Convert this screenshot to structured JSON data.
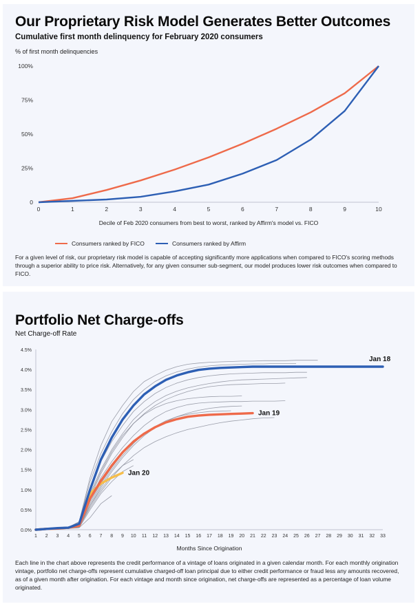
{
  "chart_data": [
    {
      "type": "line",
      "title": "Our Proprietary Risk Model Generates Better Outcomes",
      "subtitle": "Cumulative first month delinquency for February 2020 consumers",
      "ylabel": "% of first month delinquencies",
      "xlabel": "Decile of Feb 2020 consumers from best to worst, ranked by Affirm's model vs. FICO",
      "x": [
        0,
        1,
        2,
        3,
        4,
        5,
        6,
        7,
        8,
        9,
        10
      ],
      "xticks": [
        "0",
        "1",
        "2",
        "3",
        "4",
        "5",
        "6",
        "7",
        "8",
        "9",
        "10"
      ],
      "yticks": [
        "0",
        "25%",
        "50%",
        "75%",
        "100%"
      ],
      "ytick_values": [
        0,
        25,
        50,
        75,
        100
      ],
      "ylim": [
        0,
        100
      ],
      "xlim": [
        0,
        10
      ],
      "series": [
        {
          "name": "Consumers ranked by FICO",
          "color": "#ee6a4a",
          "values": [
            0,
            3,
            9,
            16,
            24,
            33,
            43,
            54,
            66,
            80,
            100
          ]
        },
        {
          "name": "Consumers ranked by Affirm",
          "color": "#2d5fb4",
          "values": [
            0,
            1,
            2,
            4,
            8,
            13,
            21,
            31,
            46,
            67,
            100
          ]
        }
      ],
      "legend_position": "bottom",
      "note": "For a given level of risk, our proprietary risk model is capable of accepting significantly more applications when compared to FICO's scoring methods through a superior ability to price risk. Alternatively, for any given consumer sub-segment, our model produces lower risk outcomes when compared to FICO."
    },
    {
      "type": "line",
      "title": "Portfolio Net Charge-offs",
      "subtitle": "Net Charge-off Rate",
      "xlabel": "Months Since Origination",
      "xlim": [
        1,
        33
      ],
      "ylim": [
        0,
        4.5
      ],
      "xticks": [
        "1",
        "2",
        "3",
        "4",
        "5",
        "6",
        "7",
        "8",
        "9",
        "10",
        "11",
        "12",
        "13",
        "14",
        "15",
        "16",
        "17",
        "18",
        "19",
        "20",
        "21",
        "22",
        "23",
        "24",
        "25",
        "26",
        "27",
        "28",
        "29",
        "30",
        "31",
        "32",
        "33"
      ],
      "yticks": [
        "0.0%",
        "0.5%",
        "1.0%",
        "1.5%",
        "2.0%",
        "2.5%",
        "3.0%",
        "3.5%",
        "4.0%",
        "4.5%"
      ],
      "ytick_values": [
        0,
        0.5,
        1,
        1.5,
        2,
        2.5,
        3,
        3.5,
        4,
        4.5
      ],
      "background_series_color": "#8a8d9a",
      "background_series": [
        [
          0,
          0.02,
          0.04,
          0.06,
          0.2,
          1.3,
          2.1,
          2.7,
          3.1,
          3.45,
          3.7,
          3.85,
          3.98,
          4.07,
          4.13,
          4.16,
          4.18,
          4.19,
          4.2,
          4.21,
          4.21,
          4.22,
          4.22,
          4.22,
          4.23,
          4.23,
          4.23
        ],
        [
          0,
          0.02,
          0.04,
          0.06,
          0.2,
          1.2,
          1.9,
          2.45,
          2.9,
          3.25,
          3.5,
          3.7,
          3.84,
          3.94,
          4.01,
          4.06,
          4.09,
          4.11,
          4.12,
          4.13,
          4.14,
          4.14,
          4.15,
          4.15,
          4.15
        ],
        [
          0,
          0.02,
          0.04,
          0.06,
          0.15,
          1.0,
          1.7,
          2.2,
          2.6,
          2.95,
          3.2,
          3.4,
          3.55,
          3.66,
          3.74,
          3.8,
          3.84,
          3.87,
          3.89,
          3.9,
          3.91,
          3.92,
          3.92,
          3.92,
          3.93,
          3.93
        ],
        [
          0,
          0.02,
          0.04,
          0.06,
          0.12,
          0.9,
          1.5,
          2.0,
          2.4,
          2.75,
          3.0,
          3.2,
          3.35,
          3.46,
          3.54,
          3.6,
          3.65,
          3.69,
          3.72,
          3.74,
          3.75,
          3.76,
          3.77,
          3.78,
          3.79,
          3.8
        ],
        [
          0,
          0.02,
          0.03,
          0.05,
          0.1,
          0.8,
          1.4,
          1.9,
          2.3,
          2.65,
          2.9,
          3.1,
          3.25,
          3.36,
          3.45,
          3.52,
          3.57,
          3.6,
          3.62,
          3.63,
          3.64,
          3.65,
          3.65,
          3.66
        ],
        [
          0,
          0.02,
          0.03,
          0.05,
          0.1,
          0.85,
          1.45,
          1.95,
          2.35,
          2.65,
          2.88,
          3.04,
          3.15,
          3.22,
          3.27,
          3.3,
          3.32,
          3.33,
          3.33,
          3.34
        ],
        [
          0,
          0.02,
          0.03,
          0.05,
          0.1,
          0.75,
          1.3,
          1.7,
          2.05,
          2.35,
          2.6,
          2.8,
          2.95,
          3.05,
          3.12,
          3.16,
          3.18,
          3.19,
          3.2,
          3.2,
          3.21,
          3.21,
          3.21,
          3.22
        ],
        [
          0,
          0.02,
          0.03,
          0.05,
          0.08,
          0.6,
          1.05,
          1.45,
          1.8,
          2.1,
          2.35,
          2.55,
          2.7,
          2.82,
          2.91,
          2.98,
          3.03,
          3.06,
          3.08,
          3.09
        ],
        [
          0,
          0.02,
          0.03,
          0.05,
          0.08,
          0.65,
          1.1,
          1.5,
          1.85,
          2.15,
          2.4,
          2.58,
          2.72,
          2.82,
          2.88,
          2.92,
          2.95,
          2.96,
          2.97
        ],
        [
          0,
          0.02,
          0.03,
          0.05,
          0.07,
          0.55,
          0.95,
          1.3,
          1.6,
          1.85,
          2.05,
          2.2,
          2.32,
          2.42,
          2.5,
          2.56,
          2.62,
          2.67,
          2.71,
          2.74,
          2.77,
          2.79,
          2.8
        ],
        [
          0,
          0.02,
          0.03,
          0.04,
          0.06,
          0.7,
          1.15,
          1.55,
          1.9,
          2.2
        ],
        [
          0,
          0.02,
          0.03,
          0.04,
          0.06,
          0.6,
          1.0,
          1.35,
          1.6,
          1.75
        ],
        [
          0,
          0.02,
          0.03,
          0.04,
          0.05,
          0.5,
          0.9,
          1.2,
          1.45,
          1.6
        ],
        [
          0,
          0.01,
          0.02,
          0.03,
          0.05,
          0.3,
          0.65,
          0.85
        ]
      ],
      "highlight_series": [
        {
          "name": "Jan 18",
          "color": "#2d5fb4",
          "values": [
            0,
            0.02,
            0.04,
            0.05,
            0.15,
            1.0,
            1.75,
            2.3,
            2.75,
            3.1,
            3.38,
            3.58,
            3.74,
            3.85,
            3.93,
            3.99,
            4.02,
            4.04,
            4.05,
            4.06,
            4.07,
            4.07,
            4.07,
            4.07,
            4.07,
            4.07,
            4.07,
            4.07,
            4.07,
            4.07,
            4.07,
            4.07,
            4.07
          ]
        },
        {
          "name": "Jan 19",
          "color": "#ee6a4a",
          "values": [
            0,
            0.02,
            0.03,
            0.05,
            0.1,
            0.78,
            1.22,
            1.6,
            1.93,
            2.2,
            2.4,
            2.56,
            2.68,
            2.76,
            2.82,
            2.85,
            2.87,
            2.88,
            2.89,
            2.9,
            2.91
          ]
        },
        {
          "name": "Jan 20",
          "color": "#f6be4b",
          "values": [
            0,
            0.02,
            0.03,
            0.05,
            0.1,
            0.9,
            1.15,
            1.3,
            1.42
          ]
        }
      ],
      "note": "Each line in the chart above represents the credit performance of a vintage of loans originated in a given calendar month. For each monthly origination vintage, portfolio net charge-offs represent cumulative charged-off loan principal due to either credit performance or fraud less any amounts recovered, as of a given month after origination. For each vintage and month since origination, net charge-offs are represented as a percentage of loan volume originated."
    }
  ]
}
